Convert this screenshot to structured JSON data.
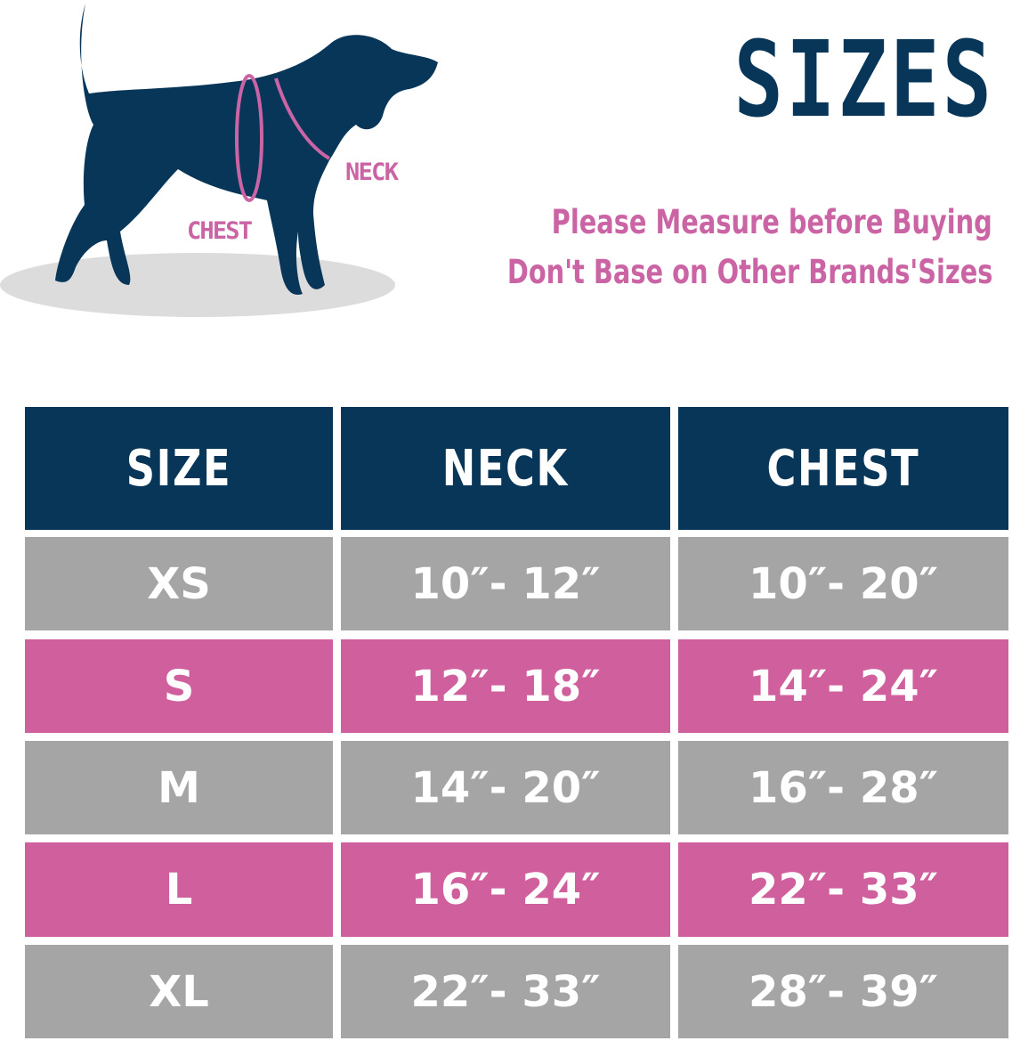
{
  "illustration": {
    "neck_label": "NECK",
    "chest_label": "CHEST",
    "icon": "dog-silhouette-icon"
  },
  "title": "SIZES",
  "notes": [
    "Please Measure before Buying",
    "Don't Base on Other Brands'Sizes"
  ],
  "colors": {
    "navy": "#073659",
    "pink": "#d0609d",
    "gray": "#a5a5a5"
  },
  "table": {
    "headers": [
      "SIZE",
      "NECK",
      "CHEST"
    ],
    "rows": [
      [
        "XS",
        "10″- 12″",
        "10″- 20″"
      ],
      [
        "S",
        "12″- 18″",
        "14″- 24″"
      ],
      [
        "M",
        "14″- 20″",
        "16″- 28″"
      ],
      [
        "L",
        "16″- 24″",
        "22″- 33″"
      ],
      [
        "XL",
        "22″- 33″",
        "28″- 39″"
      ]
    ]
  }
}
